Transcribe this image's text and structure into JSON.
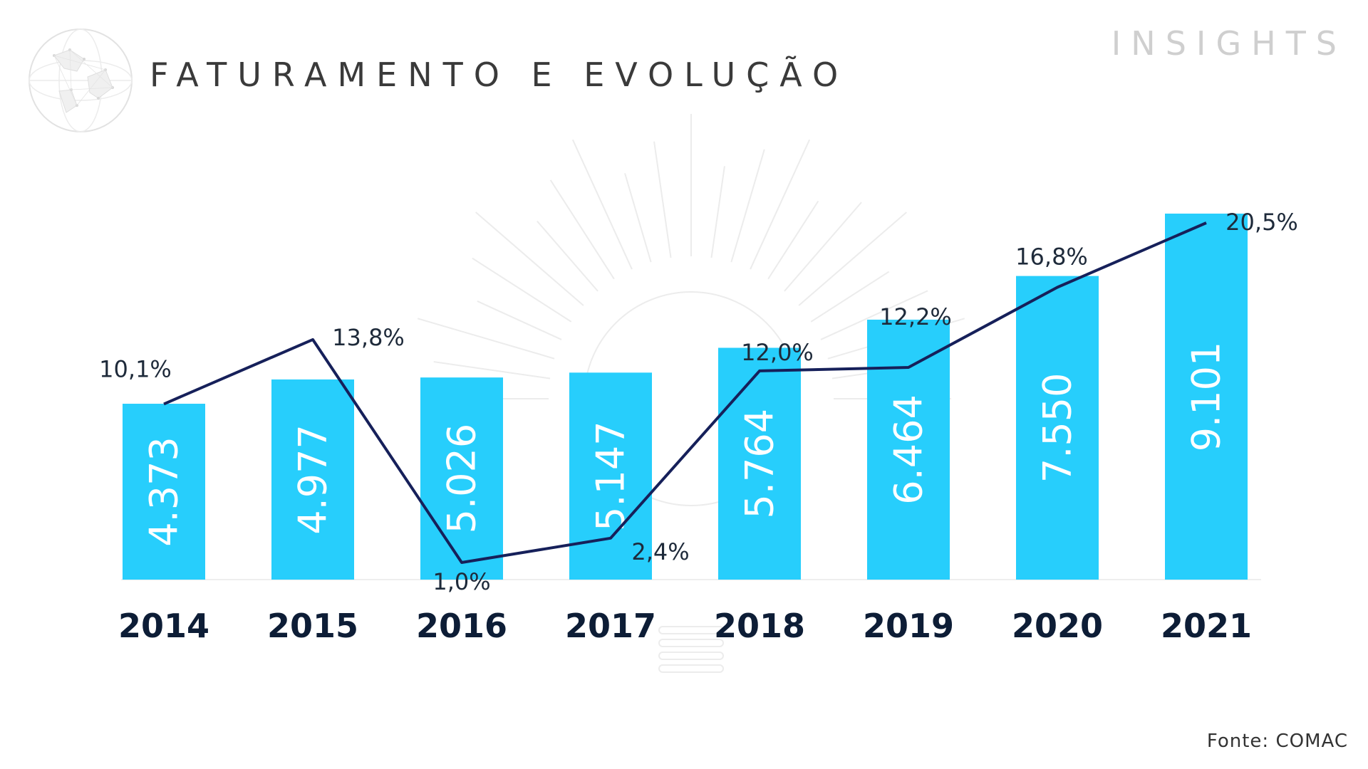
{
  "header": {
    "title": "FATURAMENTO E EVOLUÇÃO",
    "brand": "INSIGHTS"
  },
  "footer": {
    "source": "Fonte: COMAC"
  },
  "icons": {
    "globe": "globe-network-icon",
    "watermark": "lightbulb-watermark-icon"
  },
  "colors": {
    "bar": "#27cefc",
    "line": "#16205a",
    "year_text": "#0d1d36",
    "title_text": "#3a3a3a",
    "brand_text": "#cfcfcf"
  },
  "chart_data": {
    "type": "bar",
    "categories": [
      "2014",
      "2015",
      "2016",
      "2017",
      "2018",
      "2019",
      "2020",
      "2021"
    ],
    "values": [
      4373,
      4977,
      5026,
      5147,
      5764,
      6464,
      7550,
      9101
    ],
    "value_labels": [
      "4.373",
      "4.977",
      "5.026",
      "5.147",
      "5.764",
      "6.464",
      "7.550",
      "9.101"
    ],
    "line_series": {
      "values": [
        10.1,
        13.8,
        1.0,
        2.4,
        12.0,
        12.2,
        16.8,
        20.5
      ],
      "labels": [
        "10,1%",
        "13,8%",
        "1,0%",
        "2,4%",
        "12,0%",
        "12,2%",
        "16,8%",
        "20,5%"
      ]
    },
    "title": "FATURAMENTO E EVOLUÇÃO",
    "grid": false,
    "legend": "none"
  }
}
